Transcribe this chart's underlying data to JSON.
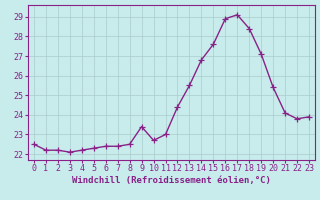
{
  "x": [
    0,
    1,
    2,
    3,
    4,
    5,
    6,
    7,
    8,
    9,
    10,
    11,
    12,
    13,
    14,
    15,
    16,
    17,
    18,
    19,
    20,
    21,
    22,
    23
  ],
  "y": [
    22.5,
    22.2,
    22.2,
    22.1,
    22.2,
    22.3,
    22.4,
    22.4,
    22.5,
    23.4,
    22.7,
    23.0,
    24.4,
    25.5,
    26.8,
    27.6,
    28.9,
    29.1,
    28.4,
    27.1,
    25.4,
    24.1,
    23.8,
    23.9
  ],
  "line_color": "#882288",
  "marker": "+",
  "marker_size": 4,
  "xlabel": "Windchill (Refroidissement éolien,°C)",
  "xlabel_fontsize": 6.5,
  "ylabel_ticks": [
    22,
    23,
    24,
    25,
    26,
    27,
    28,
    29
  ],
  "xtick_labels": [
    "0",
    "1",
    "2",
    "3",
    "4",
    "5",
    "6",
    "7",
    "8",
    "9",
    "10",
    "11",
    "12",
    "13",
    "14",
    "15",
    "16",
    "17",
    "18",
    "19",
    "20",
    "21",
    "22",
    "23"
  ],
  "ylim": [
    21.7,
    29.6
  ],
  "xlim": [
    -0.5,
    23.5
  ],
  "background_color": "#c8ecec",
  "grid_color": "#aacccc",
  "tick_color": "#882288",
  "tick_fontsize": 6.0,
  "linewidth": 1.0
}
